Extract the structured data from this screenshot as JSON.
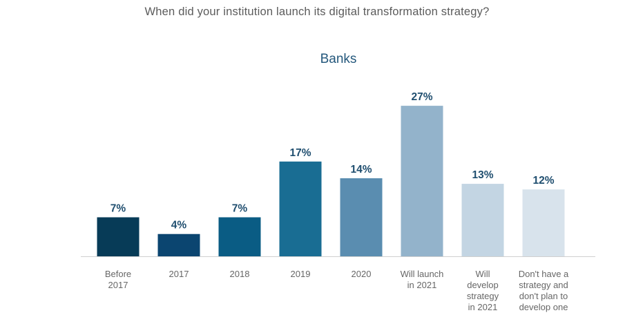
{
  "header": {
    "question": "When did your institution launch its digital transformation strategy?",
    "subtitle": "Banks"
  },
  "chart_data": {
    "type": "bar",
    "title": "Banks",
    "categories": [
      [
        "Before",
        "2017"
      ],
      [
        "2017"
      ],
      [
        "2018"
      ],
      [
        "2019"
      ],
      [
        "2020"
      ],
      [
        "Will launch",
        "in 2021"
      ],
      [
        "Will",
        "develop",
        "strategy",
        "in 2021"
      ],
      [
        "Don't have a",
        "strategy and",
        "don't plan to",
        "develop one"
      ]
    ],
    "values": [
      7,
      4,
      7,
      17,
      14,
      27,
      13,
      12
    ],
    "value_labels": [
      "7%",
      "4%",
      "7%",
      "17%",
      "14%",
      "27%",
      "13%",
      "12%"
    ],
    "colors": [
      "#073b57",
      "#0b4570",
      "#0a5c84",
      "#196d93",
      "#5a8db0",
      "#93b3cb",
      "#c3d5e3",
      "#d8e3ec"
    ],
    "ylim": [
      0,
      30
    ],
    "grid": false,
    "xlabel": "",
    "ylabel": ""
  }
}
